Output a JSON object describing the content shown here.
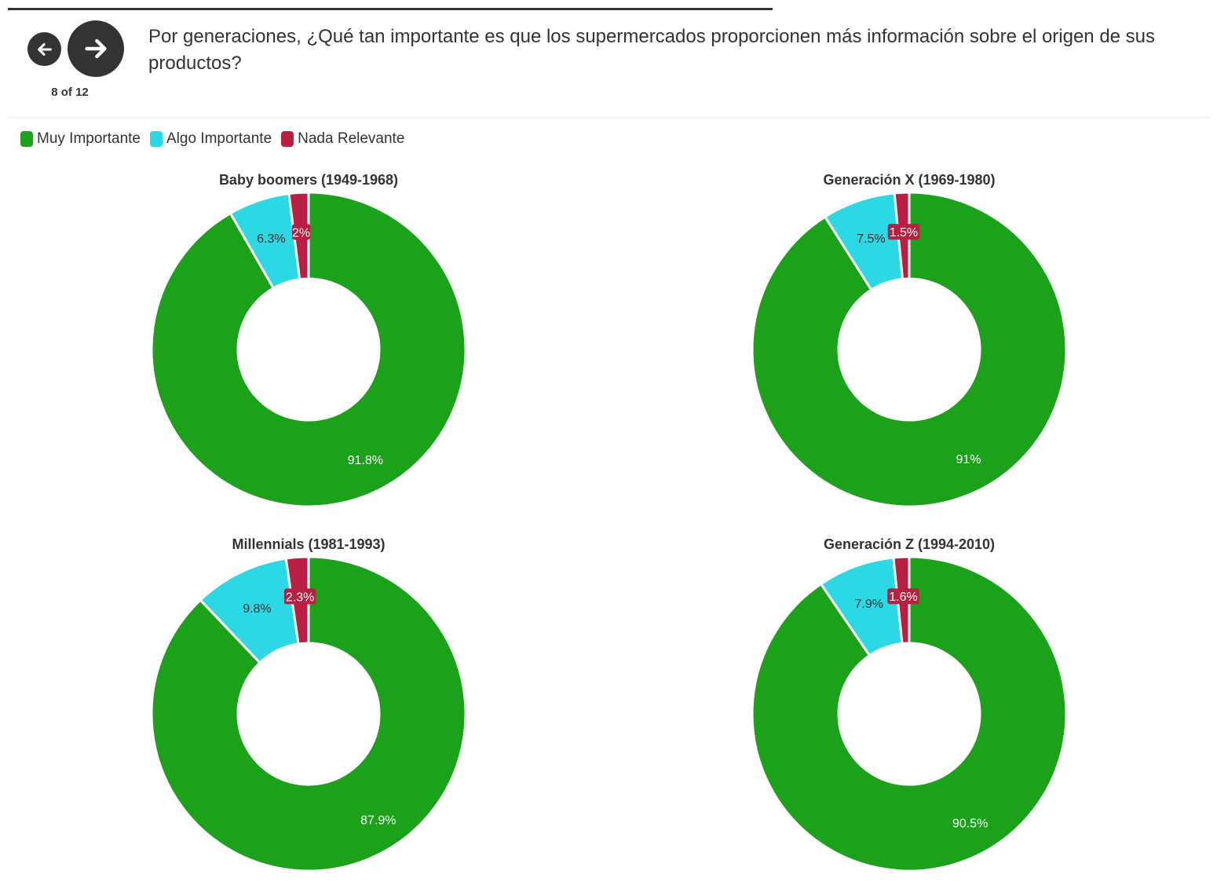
{
  "navigation": {
    "prev_icon": "arrow-left-icon",
    "next_icon": "arrow-right-icon",
    "counter": "8 of 12"
  },
  "question": "Por generaciones, ¿Qué tan importante es que los supermercados proporcionen más información sobre el origen de sus productos?",
  "colors": {
    "muy_importante": "#1ba21a",
    "algo_importante": "#2bd8e4",
    "nada_relevante": "#b81f43",
    "text": "#333333"
  },
  "legend": [
    {
      "label": "Muy Importante",
      "color": "#1ba21a"
    },
    {
      "label": "Algo Importante",
      "color": "#2bd8e4"
    },
    {
      "label": "Nada Relevante",
      "color": "#b81f43"
    }
  ],
  "chart_data": [
    {
      "type": "pie",
      "title": "Baby boomers (1949-1968)",
      "categories": [
        "Muy Importante",
        "Algo Importante",
        "Nada Relevante"
      ],
      "values": [
        91.8,
        6.3,
        2
      ],
      "labels": [
        "91.8%",
        "6.3%",
        "2%"
      ]
    },
    {
      "type": "pie",
      "title": "Generación X (1969-1980)",
      "categories": [
        "Muy Importante",
        "Algo Importante",
        "Nada Relevante"
      ],
      "values": [
        91,
        7.5,
        1.5
      ],
      "labels": [
        "91%",
        "7.5%",
        "1.5%"
      ]
    },
    {
      "type": "pie",
      "title": "Millennials (1981-1993)",
      "categories": [
        "Muy Importante",
        "Algo Importante",
        "Nada Relevante"
      ],
      "values": [
        87.9,
        9.8,
        2.3
      ],
      "labels": [
        "87.9%",
        "9.8%",
        "2.3%"
      ]
    },
    {
      "type": "pie",
      "title": "Generación Z (1994-2010)",
      "categories": [
        "Muy Importante",
        "Algo Importante",
        "Nada Relevante"
      ],
      "values": [
        90.5,
        7.9,
        1.6
      ],
      "labels": [
        "90.5%",
        "7.9%",
        "1.6%"
      ]
    }
  ]
}
